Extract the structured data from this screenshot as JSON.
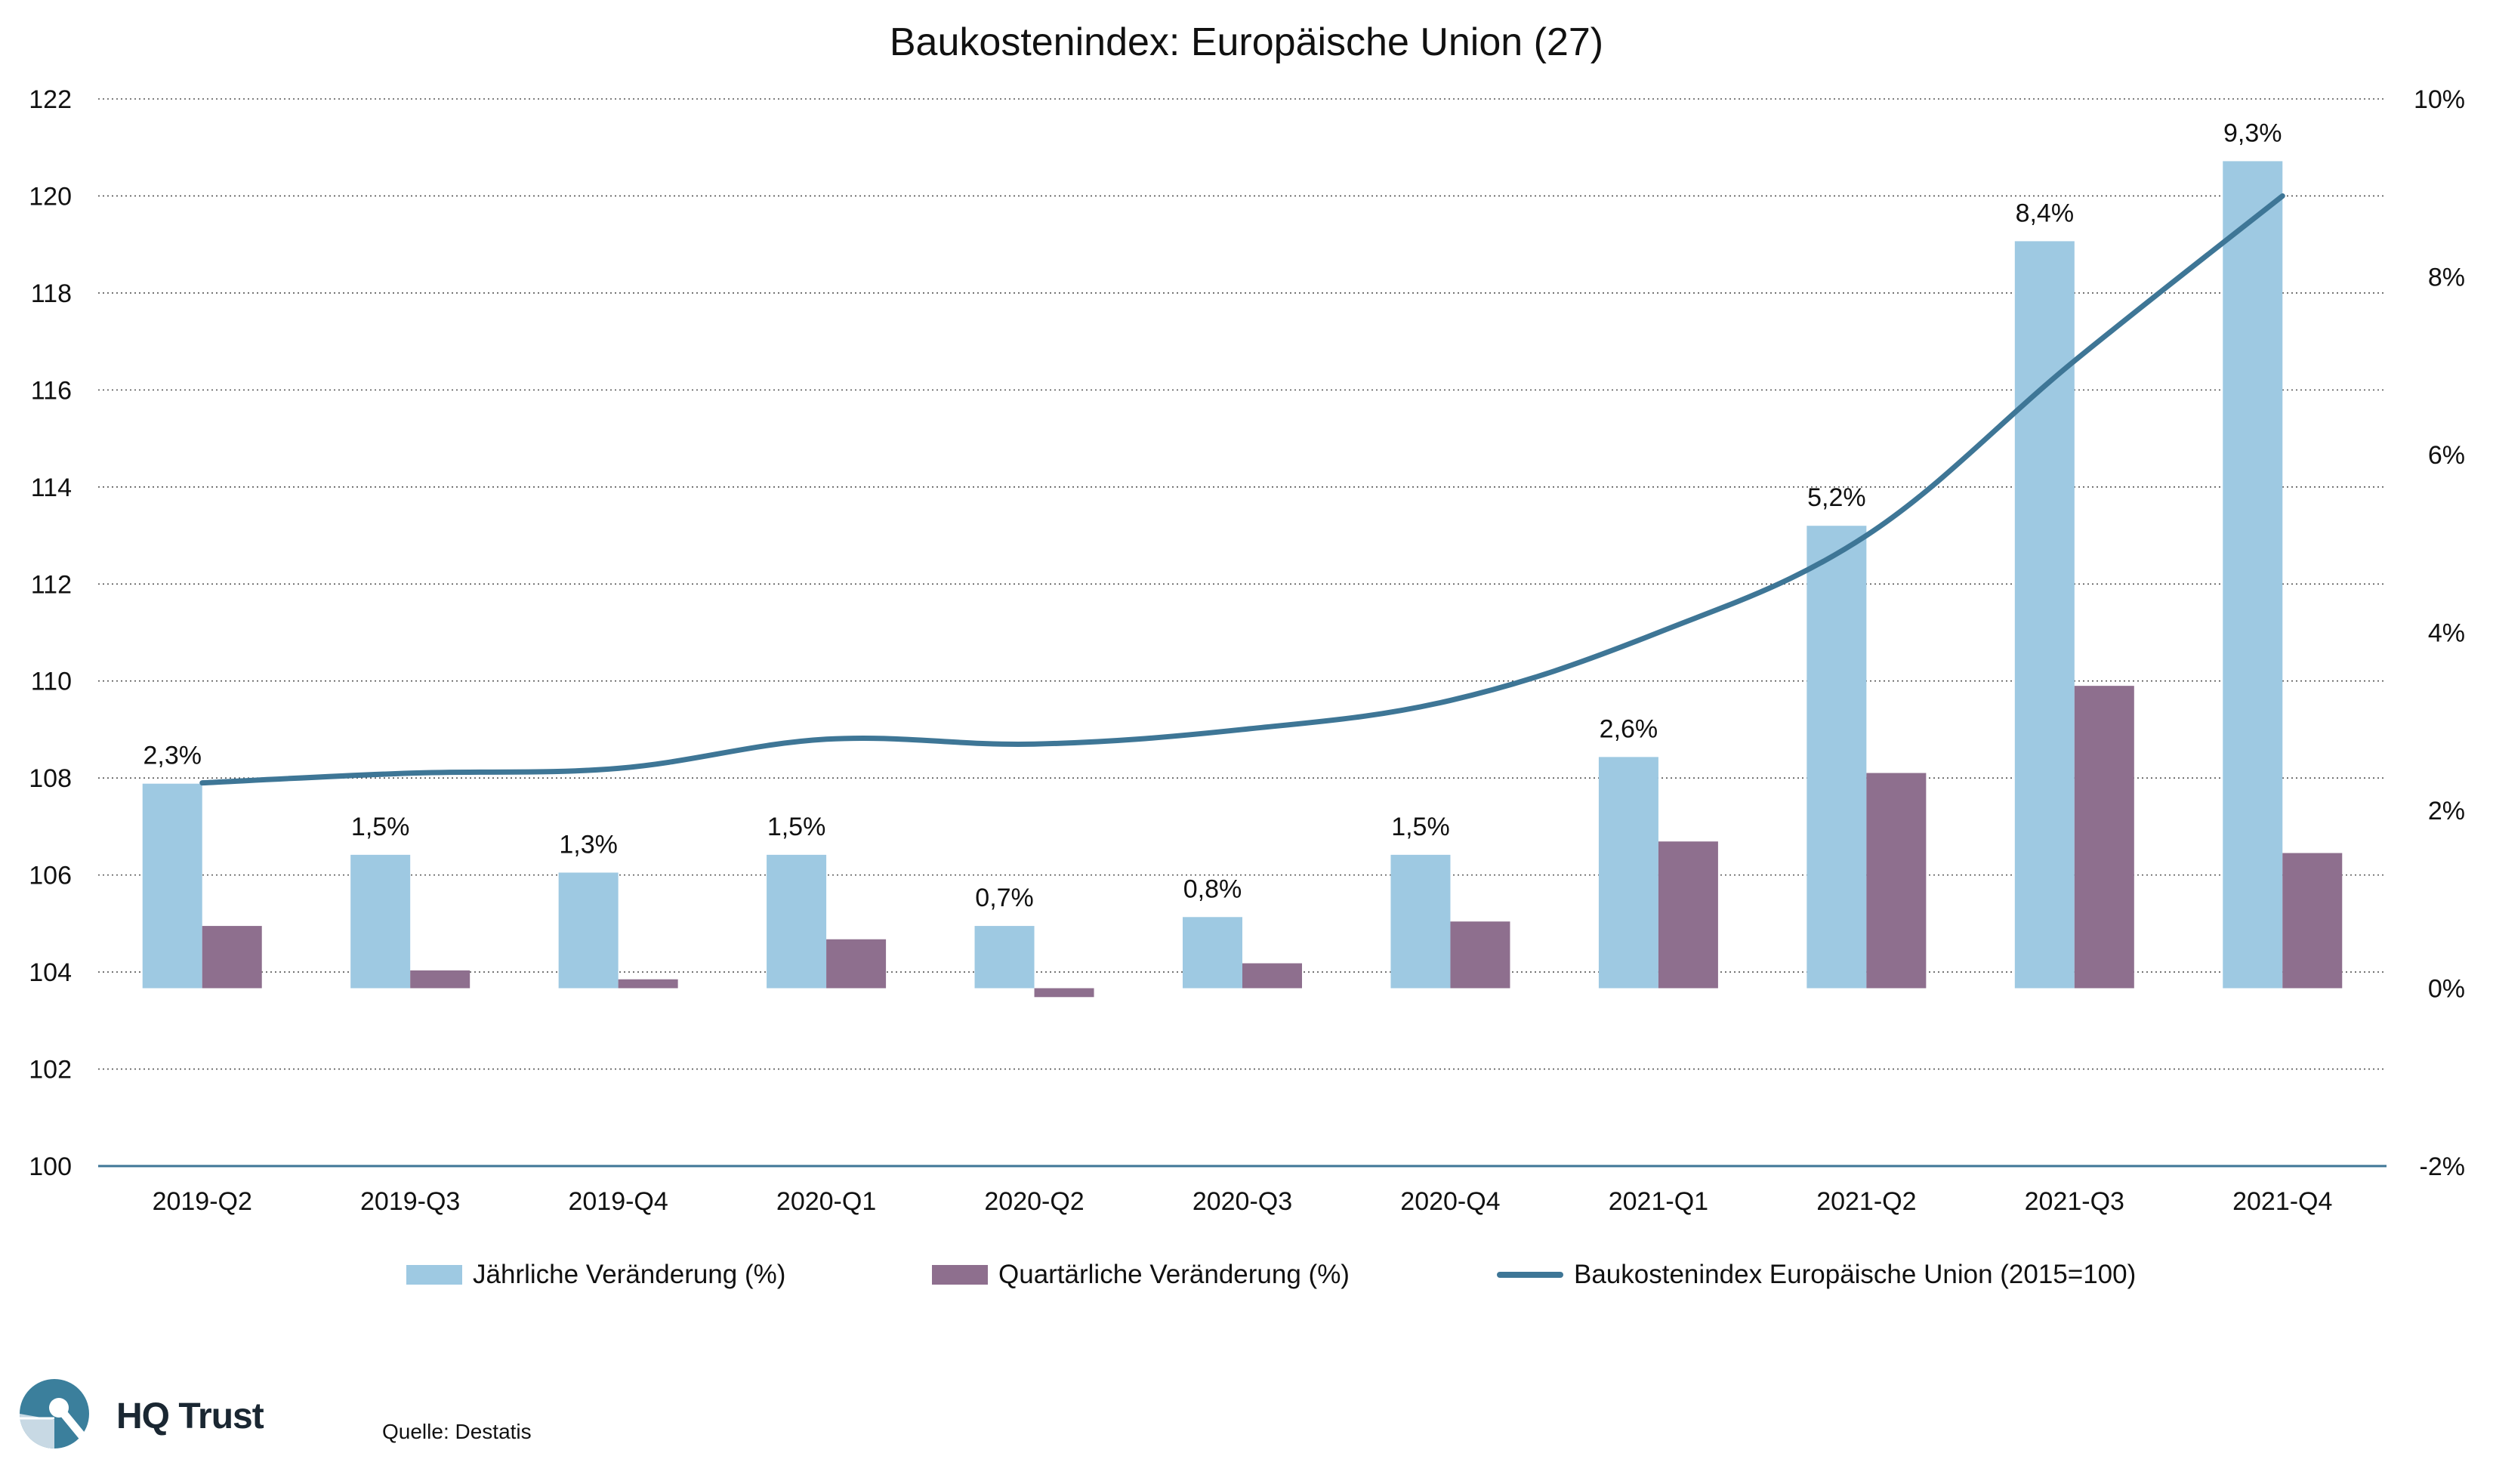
{
  "chart_data": {
    "type": "bar",
    "title": "Baukostenindex: Europäische Union (27)",
    "categories": [
      "2019-Q2",
      "2019-Q3",
      "2019-Q4",
      "2020-Q1",
      "2020-Q2",
      "2020-Q3",
      "2020-Q4",
      "2021-Q1",
      "2021-Q2",
      "2021-Q3",
      "2021-Q4"
    ],
    "series": [
      {
        "name": "Jährliche Veränderung (%)",
        "type": "bar",
        "axis": "right",
        "color": "#9ec9e2",
        "values": [
          2.3,
          1.5,
          1.3,
          1.5,
          0.7,
          0.8,
          1.5,
          2.6,
          5.2,
          8.4,
          9.3
        ],
        "labels": [
          "2,3%",
          "1,5%",
          "1,3%",
          "1,5%",
          "0,7%",
          "0,8%",
          "1,5%",
          "2,6%",
          "5,2%",
          "8,4%",
          "9,3%"
        ]
      },
      {
        "name": "Quartärliche Veränderung (%)",
        "type": "bar",
        "axis": "right",
        "color": "#8e6f8e",
        "values": [
          0.7,
          0.2,
          0.1,
          0.55,
          -0.1,
          0.28,
          0.75,
          1.65,
          2.42,
          3.4,
          1.52
        ]
      },
      {
        "name": "Baukostenindex Europäische Union (2015=100)",
        "type": "line",
        "axis": "left",
        "color": "#3e7696",
        "values": [
          107.9,
          108.1,
          108.2,
          108.8,
          108.7,
          109.0,
          109.6,
          111.0,
          113.0,
          116.6,
          120.0
        ]
      }
    ],
    "y_left": {
      "min": 100,
      "max": 122,
      "ticks": [
        "100",
        "102",
        "104",
        "106",
        "108",
        "110",
        "112",
        "114",
        "116",
        "118",
        "120",
        "122"
      ]
    },
    "y_right": {
      "min": -2,
      "max": 10,
      "ticks": [
        "-2%",
        "0%",
        "2%",
        "4%",
        "6%",
        "8%",
        "10%"
      ]
    },
    "grid": true,
    "legend_position": "bottom"
  },
  "branding": {
    "logo_text": "HQ Trust"
  },
  "source": "Quelle: Destatis"
}
